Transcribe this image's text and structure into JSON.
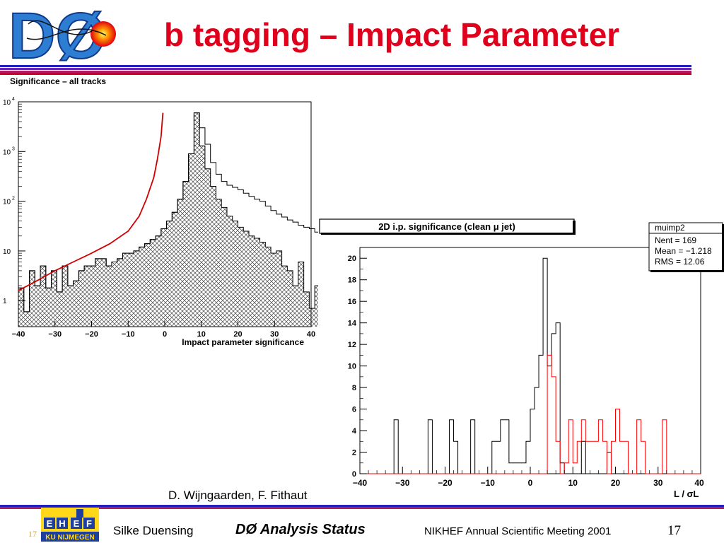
{
  "slide": {
    "title": "b tagging – Impact Parameter",
    "logo_text": "DØ",
    "authors": "D. Wijngaarden, F. Fithaut",
    "footer": {
      "author": "Silke Duensing",
      "title": "DØ Analysis Status",
      "meeting": "NIKHEF Annual Scientific Meeting 2001",
      "page": "17",
      "page_ghost": "17",
      "logo_letters": [
        "E",
        "H",
        "E",
        "F"
      ],
      "logo_text": "KU NIJMEGEN"
    },
    "colors": {
      "title": "#e0001b",
      "rule_blue": "#2020c0",
      "rule_red": "#d00020",
      "fit_red": "#d00000",
      "hist_red": "#ff0000"
    }
  },
  "chart_data": [
    {
      "type": "histogram",
      "title": "Significance – all tracks",
      "xlabel": "Impact parameter significance",
      "ylabel": "",
      "xlim": [
        -40,
        40
      ],
      "ylog": true,
      "ylim": [
        0.3,
        10000
      ],
      "x_ticks": [
        "−40",
        "−30",
        "−20",
        "−10",
        "0",
        "10",
        "20",
        "30",
        "40"
      ],
      "y_ticks": [
        {
          "value": 1,
          "label": "1",
          "sup": ""
        },
        {
          "value": 10,
          "label": "10",
          "sup": ""
        },
        {
          "value": 100,
          "label": "10",
          "sup": "2"
        },
        {
          "value": 1000,
          "label": "10",
          "sup": "3"
        },
        {
          "value": 10000,
          "label": "10",
          "sup": "4"
        }
      ],
      "bin_width": 1.5,
      "bin_start": -40,
      "series": [
        {
          "role": "outline",
          "values": [
            1.8,
            0.6,
            4,
            2,
            5,
            1.8,
            4,
            1.5,
            5,
            2,
            2.5,
            4,
            5,
            5,
            7,
            7,
            5,
            6,
            7,
            9,
            9,
            10,
            12,
            14,
            17,
            20,
            28,
            40,
            60,
            110,
            250,
            900,
            6000,
            3000,
            1400,
            600,
            350,
            250,
            210,
            190,
            170,
            145,
            125,
            110,
            100,
            80,
            65,
            55,
            48,
            42,
            38,
            33,
            30,
            28,
            24,
            22,
            22
          ]
        },
        {
          "role": "hatched",
          "values": [
            1.8,
            0.6,
            4,
            2,
            5,
            1.8,
            4,
            1.5,
            5,
            2,
            2.5,
            4,
            5,
            5,
            7,
            7,
            5,
            6,
            7,
            9,
            9,
            10,
            12,
            14,
            17,
            20,
            28,
            40,
            60,
            110,
            250,
            900,
            6000,
            1300,
            450,
            200,
            110,
            75,
            50,
            40,
            30,
            25,
            20,
            18,
            15,
            12,
            9,
            10,
            5,
            4,
            2,
            6,
            1.5,
            0.7,
            2,
            1.5,
            5
          ]
        },
        {
          "role": "fit",
          "x": [
            -40,
            -35,
            -30,
            -25,
            -20,
            -15,
            -10,
            -7,
            -5,
            -3,
            -2,
            -1,
            -0.5
          ],
          "y": [
            1.6,
            2.5,
            4,
            6,
            9,
            14,
            25,
            50,
            110,
            300,
            700,
            2000,
            6000
          ]
        }
      ]
    },
    {
      "type": "histogram",
      "title": "2D i.p. significance (clean  μ jet)",
      "xlabel": "L / σL",
      "ylabel": "",
      "xlim": [
        -40,
        40
      ],
      "ylim": [
        0,
        21
      ],
      "x_ticks": [
        "−40",
        "−30",
        "−20",
        "−10",
        "0",
        "10",
        "20",
        "30",
        "40"
      ],
      "y_ticks": [
        "0",
        "2",
        "4",
        "6",
        "8",
        "10",
        "12",
        "14",
        "16",
        "18",
        "20"
      ],
      "stats": {
        "name": "muimp2",
        "entries_label": "Nent = 169",
        "mean_label": "Mean  = −1.218",
        "rms_label": "RMS   = 12.06"
      },
      "bin_width": 1,
      "bin_start": -40,
      "series": [
        {
          "role": "black",
          "values": [
            0,
            0,
            0,
            0,
            0,
            0,
            0,
            0,
            5,
            0,
            0,
            0,
            0,
            0,
            0,
            0,
            5,
            0,
            0,
            0,
            0,
            5,
            3,
            0,
            0,
            0,
            5,
            0,
            0,
            0,
            0,
            3,
            3,
            5,
            5,
            1,
            1,
            1,
            1,
            3,
            6,
            8,
            11,
            20,
            10,
            13,
            14,
            1,
            0,
            0,
            0,
            0,
            3,
            0,
            0,
            0,
            0,
            0,
            2,
            0,
            0,
            0,
            0,
            0,
            0,
            0,
            0,
            0,
            0,
            0,
            0,
            0,
            0,
            0,
            0,
            0,
            0,
            0,
            0,
            0
          ]
        },
        {
          "role": "red",
          "values": [
            0,
            0,
            0,
            0,
            0,
            0,
            0,
            0,
            0,
            0,
            0,
            0,
            0,
            0,
            0,
            0,
            0,
            0,
            0,
            0,
            0,
            0,
            0,
            0,
            0,
            0,
            0,
            0,
            0,
            0,
            0,
            0,
            0,
            0,
            0,
            0,
            0,
            0,
            0,
            0,
            0,
            0,
            0,
            0,
            11,
            9,
            3,
            0,
            1,
            5,
            1,
            3,
            5,
            3,
            3,
            3,
            5,
            3,
            0,
            3,
            6,
            3,
            3,
            0,
            0,
            5,
            3,
            0,
            0,
            0,
            0,
            5,
            0,
            0,
            0,
            0,
            0,
            0,
            0,
            0
          ]
        }
      ]
    }
  ]
}
